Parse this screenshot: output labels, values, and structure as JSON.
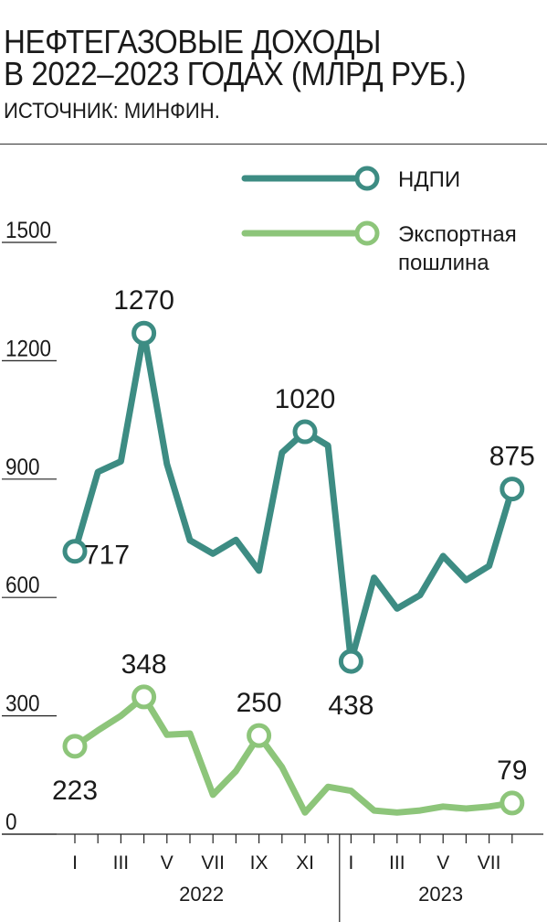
{
  "header": {
    "title_line1": "НЕФТЕГАЗОВЫЕ ДОХОДЫ",
    "title_line2": "В 2022–2023 ГОДАХ (МЛРД РУБ.)",
    "source": "ИСТОЧНИК: МИНФИН."
  },
  "colors": {
    "ndpi": "#3d8c83",
    "export": "#8dc57a",
    "text": "#1a1a1a"
  },
  "chart_data": {
    "type": "line",
    "title": "НЕФТЕГАЗОВЫЕ ДОХОДЫ В 2022–2023 ГОДАХ (МЛРД РУБ.)",
    "ylim": [
      0,
      1500
    ],
    "yticks": [
      "1500",
      "1200",
      "900",
      "600",
      "300",
      "0"
    ],
    "ytick_values": [
      1500,
      1200,
      900,
      600,
      300,
      0
    ],
    "legend_position": "top-right",
    "x_tick_labels": [
      "I",
      "",
      "III",
      "",
      "V",
      "",
      "VII",
      "",
      "IX",
      "",
      "XI",
      "",
      "I",
      "",
      "III",
      "",
      "V",
      "",
      "VII",
      ""
    ],
    "year_labels": [
      {
        "label": "2022",
        "start_index": 0,
        "end_index": 11
      },
      {
        "label": "2023",
        "start_index": 12,
        "end_index": 19
      }
    ],
    "series": [
      {
        "name": "НДПИ",
        "color": "#3d8c83",
        "values": [
          717,
          918,
          945,
          1270,
          938,
          745,
          711,
          746,
          668,
          967,
          1020,
          985,
          438,
          650,
          572,
          606,
          705,
          644,
          680,
          875
        ],
        "labels": [
          {
            "index": 0,
            "text": "717",
            "pos": "right-below"
          },
          {
            "index": 3,
            "text": "1270",
            "pos": "above"
          },
          {
            "index": 10,
            "text": "1020",
            "pos": "above"
          },
          {
            "index": 12,
            "text": "438",
            "pos": "below"
          },
          {
            "index": 19,
            "text": "875",
            "pos": "above"
          }
        ]
      },
      {
        "name": "Экспортная пошлина",
        "legend_lines": [
          "Экспортная",
          "пошлина"
        ],
        "color": "#8dc57a",
        "values": [
          223,
          263,
          300,
          348,
          252,
          255,
          100,
          160,
          250,
          170,
          55,
          120,
          110,
          60,
          55,
          60,
          70,
          65,
          70,
          79
        ],
        "labels": [
          {
            "index": 0,
            "text": "223",
            "pos": "below"
          },
          {
            "index": 3,
            "text": "348",
            "pos": "above"
          },
          {
            "index": 8,
            "text": "250",
            "pos": "above"
          },
          {
            "index": 19,
            "text": "79",
            "pos": "above"
          }
        ]
      }
    ]
  }
}
